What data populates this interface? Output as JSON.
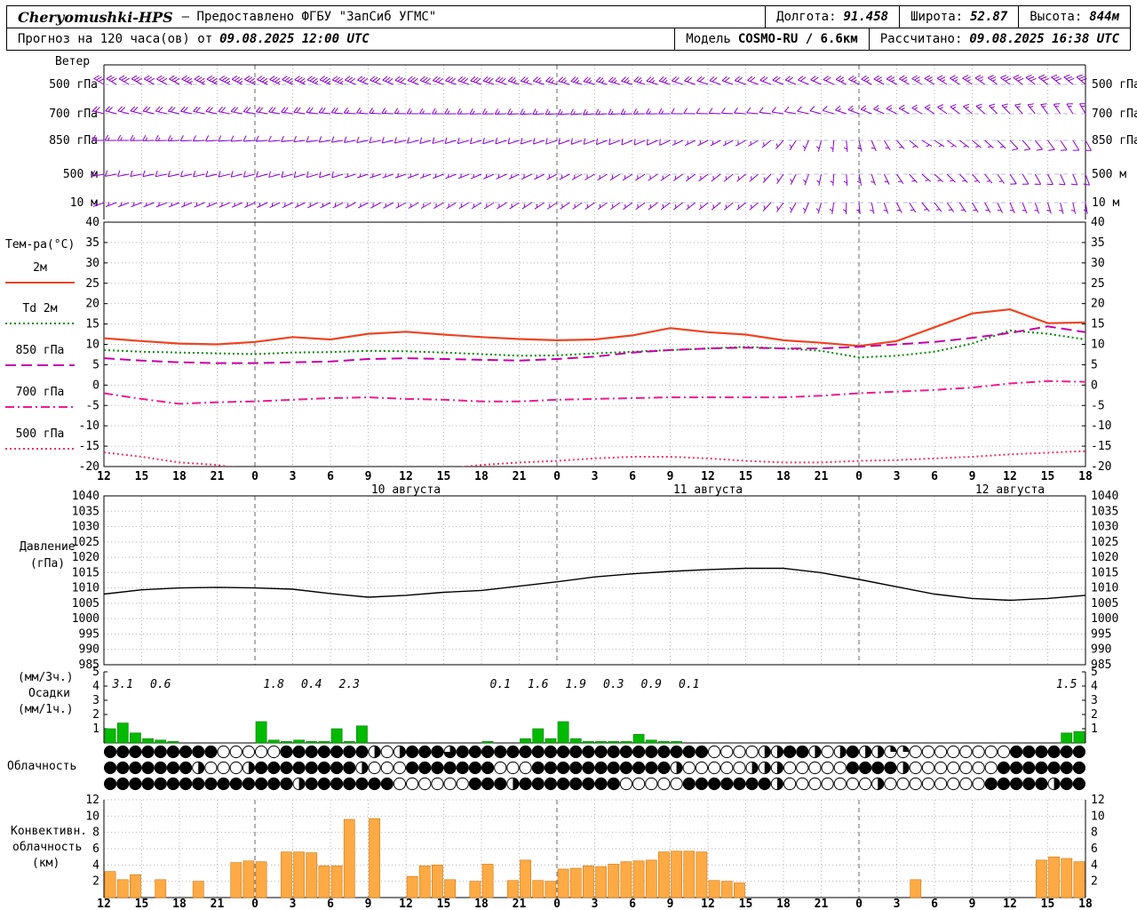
{
  "header": {
    "row1": {
      "station": "Cheryomushki-HPS",
      "provider": "— Предоставлено ФГБУ \"ЗапСиб УГМС\"",
      "lon_label": "Долгота:",
      "lon_value": "91.458",
      "lat_label": "Широта:",
      "lat_value": "52.87",
      "alt_label": "Высота:",
      "alt_value": "844м"
    },
    "row2": {
      "forecast_label": "Прогноз на 120 часа(ов) от",
      "forecast_time": "09.08.2025 12:00 UTC",
      "model_label": "Модель",
      "model_value": "COSMO-RU / 6.6км",
      "calc_label": "Рассчитано:",
      "calc_time": "09.08.2025 16:38 UTC"
    }
  },
  "labels": {
    "wind": "Ветер",
    "temperature": "Тем-ра(°C)",
    "pressure_1": "Давление",
    "pressure_2": "(гПа)",
    "precip_1": "(мм/3ч.)",
    "precip_2": "Осадки",
    "precip_3": "(мм/1ч.)",
    "cloud": "Облачность",
    "conv_1": "Конвективн.",
    "conv_2": "облачность",
    "conv_3": "(км)"
  },
  "axis": {
    "span_hours": 78,
    "step_hours": 3,
    "tick_labels": [
      "12",
      "15",
      "18",
      "21",
      "0",
      "3",
      "6",
      "9",
      "12",
      "15",
      "18",
      "21",
      "0",
      "3",
      "6",
      "9",
      "12",
      "15",
      "18",
      "21",
      "0",
      "3",
      "6",
      "9",
      "12",
      "15",
      "18"
    ],
    "midnights": [
      12,
      36,
      60
    ],
    "dates": [
      {
        "label": "10 августа",
        "hour": 24
      },
      {
        "label": "11 августа",
        "hour": 48
      },
      {
        "label": "12 августа",
        "hour": 72
      }
    ]
  },
  "chart_data": [
    {
      "id": "wind",
      "type": "wind-barbs",
      "color": "#8a00cc",
      "keyframe_hours": [
        0,
        13,
        26,
        39,
        52,
        65,
        78
      ],
      "levels": [
        {
          "label": "500 гПа",
          "dir": [
            300,
            295,
            290,
            285,
            290,
            300,
            310
          ],
          "spd": [
            30,
            35,
            30,
            25,
            20,
            25,
            30
          ]
        },
        {
          "label": "700 гПа",
          "dir": [
            285,
            280,
            270,
            265,
            275,
            300,
            330
          ],
          "spd": [
            20,
            20,
            15,
            15,
            10,
            15,
            15
          ]
        },
        {
          "label": "850 гПа",
          "dir": [
            270,
            265,
            255,
            250,
            240,
            120,
            150
          ],
          "spd": [
            15,
            10,
            10,
            10,
            5,
            5,
            10
          ]
        },
        {
          "label": "500 м",
          "dir": [
            260,
            255,
            250,
            240,
            230,
            130,
            160
          ],
          "spd": [
            10,
            10,
            5,
            5,
            5,
            5,
            10
          ]
        },
        {
          "label": "10 м",
          "dir": [
            250,
            245,
            240,
            235,
            230,
            140,
            170
          ],
          "spd": [
            5,
            5,
            5,
            5,
            5,
            5,
            5
          ]
        }
      ]
    },
    {
      "id": "temperature",
      "type": "line",
      "ylim": [
        -20,
        40
      ],
      "ytick_step": 5,
      "x_step_hours": 3,
      "series": [
        {
          "name": "2м",
          "color": "#ee4422",
          "dash": "solid",
          "values": [
            11.5,
            10.8,
            10.2,
            10.0,
            10.6,
            11.8,
            11.2,
            12.6,
            13.1,
            12.4,
            11.8,
            11.3,
            11.0,
            11.2,
            12.2,
            14.0,
            13.0,
            12.4,
            11.0,
            10.4,
            9.6,
            10.8,
            14.2,
            17.6,
            18.6,
            15.2,
            15.4
          ]
        },
        {
          "name": "Td 2м",
          "color": "#008800",
          "dash": "dotted",
          "values": [
            8.6,
            8.2,
            8.0,
            7.8,
            7.6,
            8.0,
            8.1,
            8.4,
            8.3,
            8.0,
            7.6,
            7.2,
            7.3,
            7.8,
            8.2,
            8.6,
            9.0,
            9.4,
            9.0,
            8.4,
            6.8,
            7.2,
            8.2,
            10.2,
            13.4,
            12.6,
            11.2
          ]
        },
        {
          "name": "850 гПа",
          "color": "#c400a6",
          "dash": "longdash",
          "values": [
            6.6,
            6.0,
            5.6,
            5.4,
            5.4,
            5.6,
            5.8,
            6.4,
            6.6,
            6.4,
            6.2,
            6.0,
            6.4,
            7.0,
            8.0,
            8.6,
            9.0,
            9.2,
            9.0,
            9.0,
            9.4,
            10.0,
            10.6,
            11.6,
            12.8,
            14.4,
            13.0
          ]
        },
        {
          "name": "700 гПа",
          "color": "#ee1c8e",
          "dash": "dashdot",
          "values": [
            -2.0,
            -3.4,
            -4.6,
            -4.2,
            -4.0,
            -3.6,
            -3.2,
            -3.0,
            -3.4,
            -3.6,
            -4.0,
            -4.0,
            -3.6,
            -3.4,
            -3.2,
            -3.0,
            -3.0,
            -3.0,
            -3.0,
            -2.6,
            -2.0,
            -1.6,
            -1.2,
            -0.6,
            0.4,
            1.0,
            0.8
          ]
        },
        {
          "name": "500 гПа",
          "color": "#ee3366",
          "dash": "dotted",
          "values": [
            -16.5,
            -17.6,
            -19.0,
            -19.6,
            -21.0,
            -21.5,
            -21.5,
            -21.0,
            -21.5,
            -20.6,
            -19.6,
            -19.0,
            -18.6,
            -18.0,
            -17.6,
            -17.6,
            -18.0,
            -18.6,
            -19.0,
            -19.0,
            -18.6,
            -18.4,
            -18.0,
            -17.6,
            -17.0,
            -16.6,
            -16.2
          ]
        }
      ]
    },
    {
      "id": "pressure",
      "type": "line",
      "ylim": [
        985,
        1040
      ],
      "ytick_step": 5,
      "x_step_hours": 3,
      "series": [
        {
          "name": "Давление",
          "color": "#000000",
          "dash": "solid",
          "values": [
            1008.0,
            1009.4,
            1010.0,
            1010.2,
            1010.0,
            1009.6,
            1008.2,
            1007.0,
            1007.6,
            1008.6,
            1009.2,
            1010.6,
            1012.0,
            1013.6,
            1014.6,
            1015.4,
            1016.0,
            1016.4,
            1016.4,
            1015.0,
            1012.8,
            1010.4,
            1008.0,
            1006.6,
            1006.0,
            1006.6,
            1007.6
          ]
        }
      ]
    },
    {
      "id": "precipitation",
      "type": "bar",
      "ylim": [
        0,
        5
      ],
      "unit_hours": 1,
      "color": "#00bb00",
      "values": [
        1.0,
        1.4,
        0.7,
        0.3,
        0.2,
        0.1,
        0,
        0,
        0,
        0,
        0,
        0,
        1.5,
        0.2,
        0.1,
        0.2,
        0.1,
        0.1,
        1.0,
        0.1,
        1.2,
        0,
        0,
        0,
        0,
        0,
        0,
        0,
        0,
        0,
        0.1,
        0,
        0,
        0.3,
        1.0,
        0.3,
        1.5,
        0.3,
        0.1,
        0.1,
        0.1,
        0.1,
        0.6,
        0.2,
        0.1,
        0.1,
        0,
        0,
        0,
        0,
        0,
        0,
        0,
        0,
        0,
        0,
        0,
        0,
        0,
        0,
        0,
        0,
        0,
        0,
        0,
        0,
        0,
        0,
        0,
        0,
        0,
        0,
        0,
        0,
        0,
        0,
        0.7,
        0.8
      ],
      "labels_3h": [
        {
          "hour": 1.5,
          "text": "3.1"
        },
        {
          "hour": 4.5,
          "text": "0.6"
        },
        {
          "hour": 13.5,
          "text": "1.8"
        },
        {
          "hour": 16.5,
          "text": "0.4"
        },
        {
          "hour": 19.5,
          "text": "2.3"
        },
        {
          "hour": 31.5,
          "text": "0.1"
        },
        {
          "hour": 34.5,
          "text": "1.6"
        },
        {
          "hour": 37.5,
          "text": "1.9"
        },
        {
          "hour": 40.5,
          "text": "0.3"
        },
        {
          "hour": 43.5,
          "text": "0.9"
        },
        {
          "hour": 46.5,
          "text": "0.1"
        },
        {
          "hour": 76.5,
          "text": "1.5"
        }
      ]
    },
    {
      "id": "cloudiness",
      "type": "cloud-cover-rows",
      "scale": "0=clear, 4=overcast, hourly symbols",
      "rows": [
        "444444444000004444444202444344444444444444444444000022442024221100000000444444",
        "444444420002444444442000444444400044444444444200000222000004444200000004444444",
        "444444444444444244444440000004442444444440000044444442000000020000000044444244"
      ]
    },
    {
      "id": "convective-cloud",
      "type": "bar",
      "ylim": [
        0,
        12
      ],
      "ytick_step": 2,
      "unit_hours": 1,
      "color": "#ffaa44",
      "values": [
        3.2,
        2.2,
        2.8,
        0,
        2.2,
        0,
        0,
        2.0,
        0,
        0,
        4.3,
        4.5,
        4.4,
        0,
        5.6,
        5.6,
        5.5,
        3.9,
        3.9,
        9.6,
        0,
        9.7,
        0,
        0,
        2.6,
        3.9,
        4.0,
        2.2,
        0,
        2.0,
        4.1,
        0,
        2.1,
        4.6,
        2.1,
        2.0,
        3.5,
        3.6,
        3.9,
        3.8,
        4.1,
        4.4,
        4.5,
        4.6,
        5.6,
        5.7,
        5.7,
        5.6,
        2.1,
        2.0,
        1.8,
        0,
        0,
        0,
        0,
        0,
        0,
        0,
        0,
        0,
        0,
        0,
        0,
        0,
        2.2,
        0,
        0,
        0,
        0,
        0,
        0,
        0,
        0,
        0,
        4.6,
        5.0,
        4.8,
        4.4
      ]
    }
  ]
}
